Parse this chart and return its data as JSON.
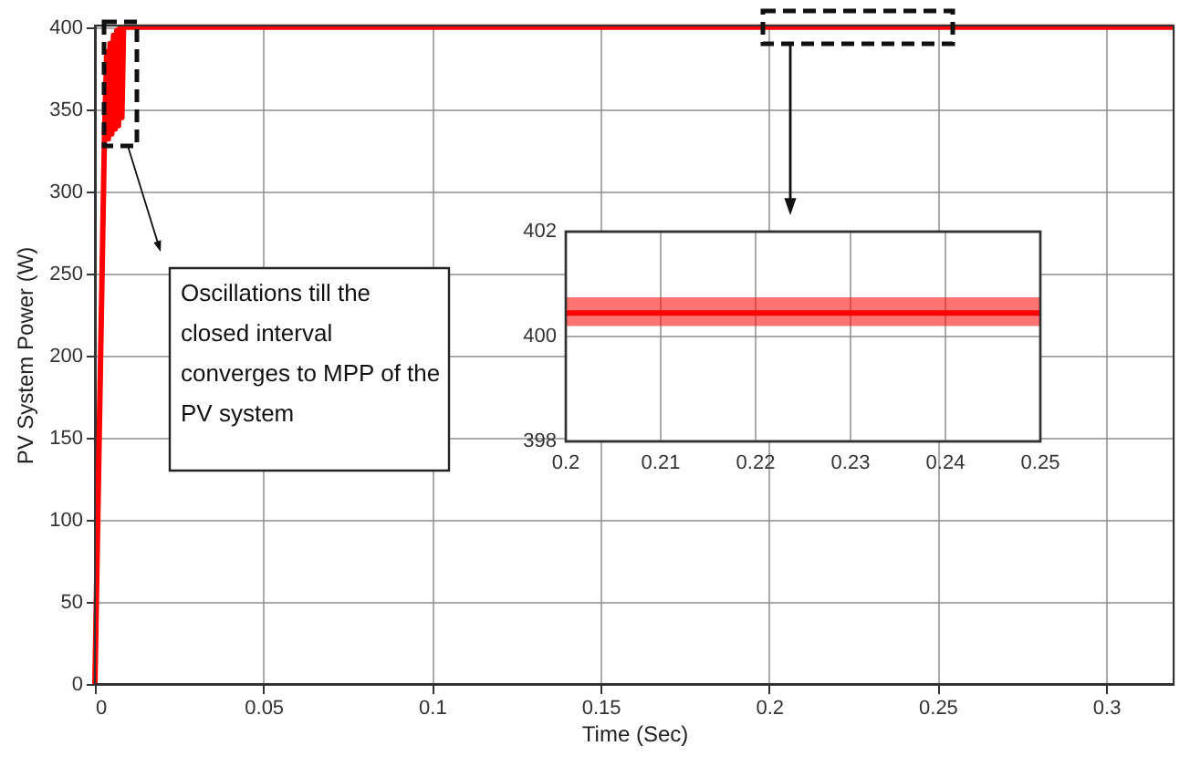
{
  "chart_data": [
    {
      "type": "line",
      "xlabel": "Time (Sec)",
      "ylabel": "PV System Power (W)",
      "x": [
        0,
        0.0028,
        0.0035,
        0.004,
        0.0045,
        0.005,
        0.0055,
        0.006,
        0.0065,
        0.007,
        0.0075,
        0.008,
        0.0085,
        0.009,
        0.01,
        0.05,
        0.1,
        0.15,
        0.2,
        0.25,
        0.3,
        0.32
      ],
      "series": [
        {
          "color": "#ff0000",
          "values": [
            0,
            330,
            385,
            332,
            390,
            335,
            395,
            338,
            398,
            340,
            400,
            345,
            400,
            400,
            400,
            400,
            400,
            400,
            400,
            400,
            400,
            400
          ]
        }
      ],
      "xlim": [
        0,
        0.32
      ],
      "xticks": [
        0,
        0.05,
        0.1,
        0.15,
        0.2,
        0.25,
        0.3
      ],
      "ylim": [
        0,
        401
      ],
      "yticks": [
        0,
        50,
        100,
        150,
        200,
        250,
        300,
        350,
        400
      ],
      "grid": true,
      "marker": "none",
      "line_style": "solid",
      "annotations": [
        "Oscillations till the\nclosed interval\nconverges to MPP of the\nPV system"
      ]
    },
    {
      "type": "line",
      "x": [
        0.2,
        0.25
      ],
      "series": [
        {
          "color": "#ff0000",
          "values": [
            400.45,
            400.45
          ],
          "lower": [
            400.2,
            400.2
          ],
          "upper": [
            400.75,
            400.75
          ]
        }
      ],
      "xlim": [
        0.2,
        0.25
      ],
      "xticks": [
        0.2,
        0.21,
        0.22,
        0.23,
        0.24,
        0.25
      ],
      "ylim": [
        398,
        402
      ],
      "yticks": [
        398,
        400,
        402
      ],
      "grid": true
    }
  ]
}
